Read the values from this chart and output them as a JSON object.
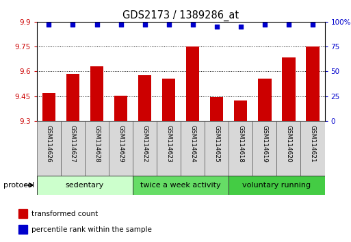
{
  "title": "GDS2173 / 1389286_at",
  "samples": [
    "GSM114626",
    "GSM114627",
    "GSM114628",
    "GSM114629",
    "GSM114622",
    "GSM114623",
    "GSM114624",
    "GSM114625",
    "GSM114618",
    "GSM114619",
    "GSM114620",
    "GSM114621"
  ],
  "bar_values": [
    9.47,
    9.585,
    9.63,
    9.455,
    9.575,
    9.555,
    9.75,
    9.445,
    9.425,
    9.555,
    9.685,
    9.75
  ],
  "percentile_values": [
    97,
    97,
    97,
    97,
    97,
    97,
    97,
    95,
    95,
    97,
    97,
    97
  ],
  "bar_color": "#cc0000",
  "dot_color": "#0000cc",
  "ymin": 9.3,
  "ymax": 9.9,
  "y_ticks": [
    9.3,
    9.45,
    9.6,
    9.75,
    9.9
  ],
  "y_right_ticks": [
    0,
    25,
    50,
    75,
    100
  ],
  "groups": [
    {
      "label": "sedentary",
      "start": 0,
      "end": 4,
      "color": "#ccffcc"
    },
    {
      "label": "twice a week activity",
      "start": 4,
      "end": 8,
      "color": "#66dd66"
    },
    {
      "label": "voluntary running",
      "start": 8,
      "end": 12,
      "color": "#44cc44"
    }
  ],
  "legend_items": [
    {
      "label": "transformed count",
      "color": "#cc0000"
    },
    {
      "label": "percentile rank within the sample",
      "color": "#0000cc"
    }
  ],
  "protocol_label": "protocol",
  "bar_width": 0.55,
  "tick_label_fontsize": 7.5,
  "title_fontsize": 10.5,
  "sample_fontsize": 6.5,
  "group_fontsize": 8.0
}
